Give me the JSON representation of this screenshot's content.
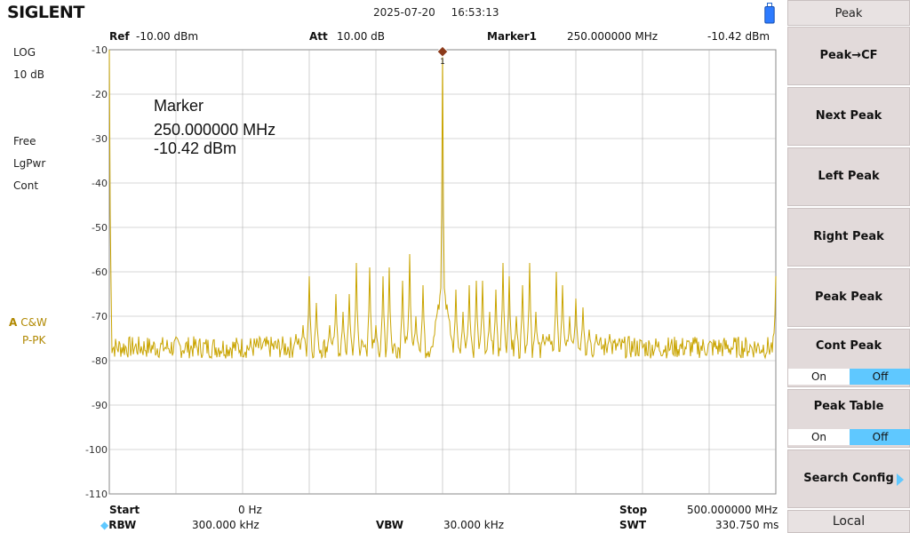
{
  "brand": "SIGLENT",
  "status": {
    "date": "2025-07-20",
    "time": "16:53:13",
    "battery_icon": "usb-battery-icon"
  },
  "header": {
    "ref_label": "Ref",
    "ref_value": "-10.00 dBm",
    "att_label": "Att",
    "att_value": "10.00 dB",
    "marker_label": "Marker1",
    "marker_freq": "250.000000 MHz",
    "marker_level": "-10.42 dBm"
  },
  "left_panel": {
    "scale_type": "LOG",
    "scale_div": "10 dB",
    "trigger": "Free",
    "detector": "LgPwr",
    "sweep_mode": "Cont",
    "trace_id": "A",
    "trace_mode": "C&W",
    "trace_detect": "P-PK"
  },
  "marker_readout": {
    "title": "Marker",
    "freq": "250.000000 MHz",
    "level": "-10.42 dBm"
  },
  "footer": {
    "start_label": "Start",
    "start_value": "0 Hz",
    "stop_label": "Stop",
    "stop_value": "500.000000 MHz",
    "rbw_label": "RBW",
    "rbw_value": "300.000 kHz",
    "vbw_label": "VBW",
    "vbw_value": "30.000 kHz",
    "swt_label": "SWT",
    "swt_value": "330.750 ms"
  },
  "softkeys": {
    "title": "Peak",
    "buttons": [
      {
        "label": "Peak→CF"
      },
      {
        "label": "Next Peak"
      },
      {
        "label": "Left Peak"
      },
      {
        "label": "Right Peak"
      },
      {
        "label": "Peak Peak"
      },
      {
        "label": "Cont Peak",
        "on": "On",
        "off": "Off",
        "state": "off"
      },
      {
        "label": "Peak Table",
        "on": "On",
        "off": "Off",
        "state": "off"
      },
      {
        "label": "Search Config"
      }
    ],
    "local": "Local"
  },
  "colors": {
    "trace": "#c9a400",
    "marker": "#8b3a1a",
    "grid": "#b0b0b0",
    "toggle_active": "#5fc8ff"
  },
  "chart_data": {
    "type": "line",
    "x_unit": "MHz",
    "y_unit": "dBm",
    "xlim": [
      0,
      500
    ],
    "ylim": [
      -110,
      -10
    ],
    "y_ticks": [
      -10,
      -20,
      -30,
      -40,
      -50,
      -60,
      -70,
      -80,
      -90,
      -100,
      -110
    ],
    "noise_floor": -77,
    "peaks": [
      {
        "x": 0,
        "y": -10
      },
      {
        "x": 140,
        "y": -74
      },
      {
        "x": 145,
        "y": -72
      },
      {
        "x": 150,
        "y": -61
      },
      {
        "x": 155,
        "y": -67
      },
      {
        "x": 165,
        "y": -72
      },
      {
        "x": 170,
        "y": -65
      },
      {
        "x": 175,
        "y": -69
      },
      {
        "x": 180,
        "y": -65
      },
      {
        "x": 185,
        "y": -58
      },
      {
        "x": 195,
        "y": -59
      },
      {
        "x": 200,
        "y": -72
      },
      {
        "x": 205,
        "y": -61
      },
      {
        "x": 210,
        "y": -59
      },
      {
        "x": 220,
        "y": -62
      },
      {
        "x": 225,
        "y": -56
      },
      {
        "x": 230,
        "y": -70
      },
      {
        "x": 235,
        "y": -63
      },
      {
        "x": 245,
        "y": -73
      },
      {
        "x": 250,
        "y": -10.42
      },
      {
        "x": 255,
        "y": -73
      },
      {
        "x": 260,
        "y": -64
      },
      {
        "x": 265,
        "y": -69
      },
      {
        "x": 270,
        "y": -63
      },
      {
        "x": 275,
        "y": -62
      },
      {
        "x": 280,
        "y": -62
      },
      {
        "x": 285,
        "y": -69
      },
      {
        "x": 290,
        "y": -64
      },
      {
        "x": 295,
        "y": -58
      },
      {
        "x": 300,
        "y": -61
      },
      {
        "x": 305,
        "y": -70
      },
      {
        "x": 310,
        "y": -63
      },
      {
        "x": 315,
        "y": -58
      },
      {
        "x": 320,
        "y": -69
      },
      {
        "x": 325,
        "y": -74
      },
      {
        "x": 330,
        "y": -74
      },
      {
        "x": 335,
        "y": -60
      },
      {
        "x": 340,
        "y": -63
      },
      {
        "x": 345,
        "y": -70
      },
      {
        "x": 350,
        "y": -66
      },
      {
        "x": 355,
        "y": -68
      },
      {
        "x": 360,
        "y": -73
      },
      {
        "x": 365,
        "y": -74
      },
      {
        "x": 375,
        "y": -74
      },
      {
        "x": 500,
        "y": -61
      }
    ],
    "marker": {
      "name": "Marker1",
      "x": 250,
      "y": -10.42
    }
  }
}
